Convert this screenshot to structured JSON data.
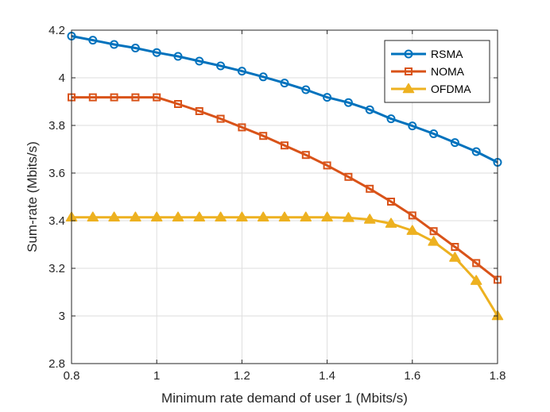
{
  "chart_data": {
    "type": "line",
    "xlabel": "Minimum rate demand of user 1 (Mbits/s)",
    "ylabel": "Sum-rate (Mbits/s)",
    "xlim": [
      0.8,
      1.8
    ],
    "ylim": [
      2.8,
      4.2
    ],
    "xticks": [
      "0.8",
      "1",
      "1.2",
      "1.4",
      "1.6",
      "1.8"
    ],
    "yticks": [
      "2.8",
      "3",
      "3.2",
      "3.4",
      "3.6",
      "3.8",
      "4",
      "4.2"
    ],
    "grid": true,
    "legend_position": "top-right",
    "x": [
      0.8,
      0.85,
      0.9,
      0.95,
      1.0,
      1.05,
      1.1,
      1.15,
      1.2,
      1.25,
      1.3,
      1.35,
      1.4,
      1.45,
      1.5,
      1.55,
      1.6,
      1.65,
      1.7,
      1.75,
      1.8
    ],
    "series": [
      {
        "name": "RSMA",
        "color": "#0072BD",
        "marker": "circle",
        "values": [
          4.175,
          4.158,
          4.14,
          4.125,
          4.106,
          4.09,
          4.07,
          4.05,
          4.028,
          4.004,
          3.978,
          3.95,
          3.918,
          3.896,
          3.866,
          3.828,
          3.798,
          3.765,
          3.728,
          3.69,
          3.645
        ]
      },
      {
        "name": "NOMA",
        "color": "#D95319",
        "marker": "square",
        "values": [
          3.918,
          3.918,
          3.918,
          3.918,
          3.918,
          3.89,
          3.86,
          3.828,
          3.792,
          3.756,
          3.716,
          3.676,
          3.632,
          3.584,
          3.534,
          3.48,
          3.422,
          3.356,
          3.29,
          3.222,
          3.152
        ]
      },
      {
        "name": "OFDMA",
        "color": "#EDB120",
        "marker": "triangle",
        "values": [
          3.414,
          3.414,
          3.414,
          3.414,
          3.414,
          3.414,
          3.414,
          3.414,
          3.414,
          3.414,
          3.414,
          3.414,
          3.414,
          3.412,
          3.405,
          3.388,
          3.358,
          3.312,
          3.245,
          3.148,
          3.0
        ]
      }
    ]
  }
}
